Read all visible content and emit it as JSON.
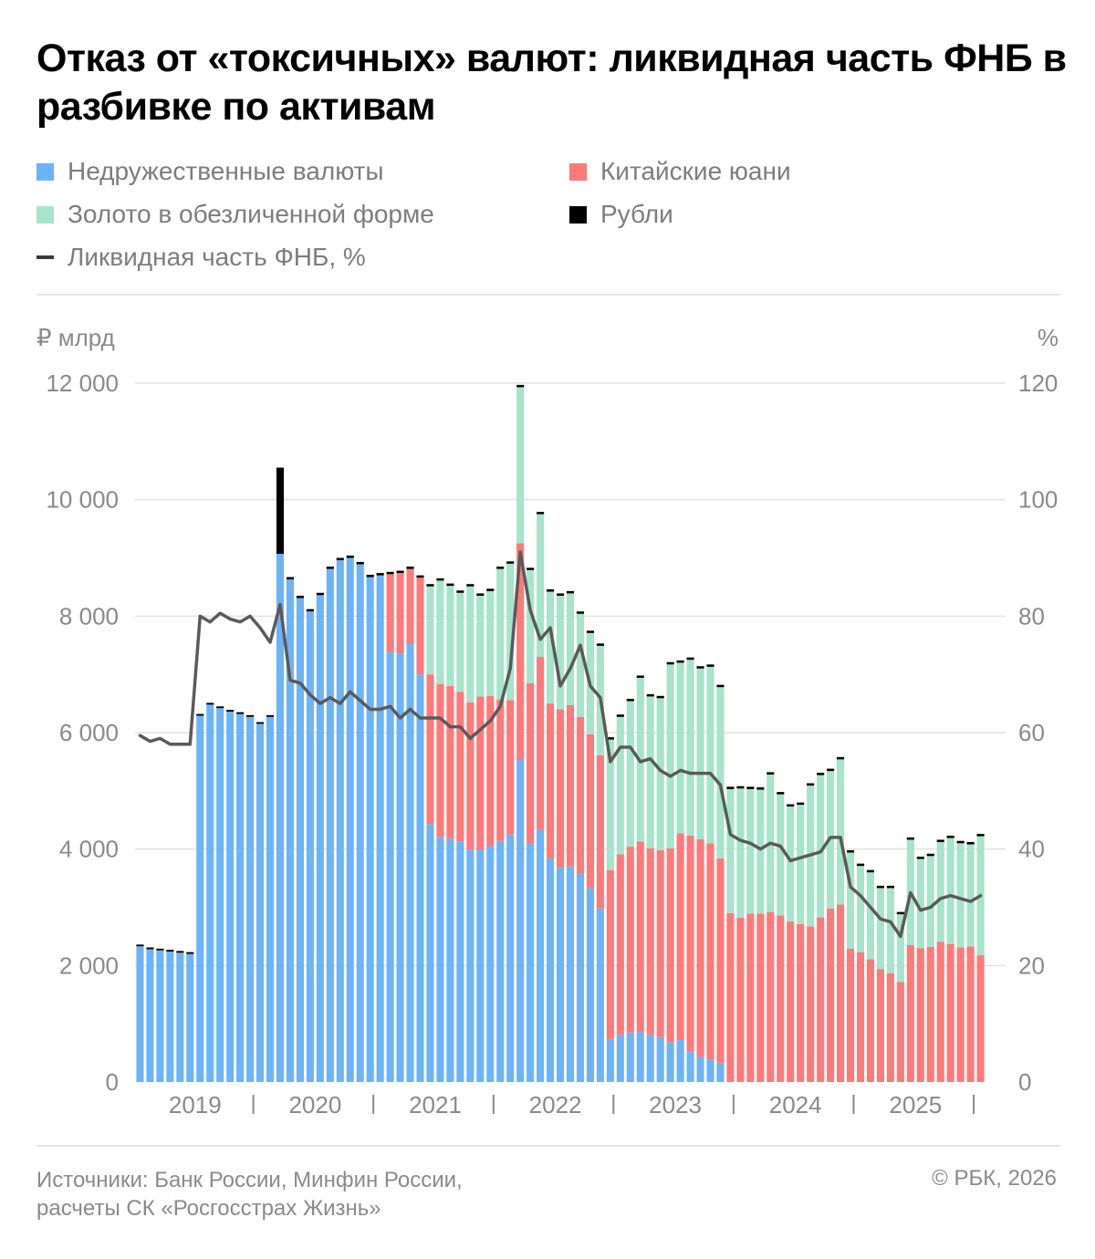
{
  "title": "Отказ от «токсичных» валют: ликвидная часть ФНБ в разбивке по активам",
  "legend": [
    {
      "label": "Недружественные валюты",
      "color": "#6cb4f8",
      "shape": "square"
    },
    {
      "label": "Китайские юани",
      "color": "#fd7a7a",
      "shape": "square"
    },
    {
      "label": "Золото в обезличенной форме",
      "color": "#a6e4cb",
      "shape": "square"
    },
    {
      "label": "Рубли",
      "color": "#000000",
      "shape": "square"
    },
    {
      "label": "Ликвидная часть ФНБ, %",
      "color": "#5a5a5a",
      "shape": "line"
    }
  ],
  "footer": {
    "source_line1": "Источники: Банк России, Минфин России,",
    "source_line2": "расчеты СК «Росгосстрах Жизнь»",
    "copyright": "© РБК, 2026"
  },
  "chart_data": {
    "type": "bar",
    "stacked": true,
    "y_left_label": "₽ млрд",
    "y_right_label": "%",
    "ylim_left": [
      0,
      12000
    ],
    "ylim_right": [
      0,
      120
    ],
    "y_left_ticks": [
      "0",
      "2 000",
      "4 000",
      "6 000",
      "8 000",
      "10 000",
      "12 000"
    ],
    "y_right_ticks": [
      "0",
      "20",
      "40",
      "60",
      "80",
      "100",
      "120"
    ],
    "grid": true,
    "legend_position": "top",
    "x_year_labels": [
      "2019",
      "2020",
      "2021",
      "2022",
      "2023",
      "2024",
      "2025"
    ],
    "colors": {
      "unfriendly": "#6cb4f8",
      "yuan": "#fd7a7a",
      "gold": "#a6e4cb",
      "rubles": "#000000",
      "line": "#5a5a5a"
    },
    "months_per_year": 12,
    "series": [
      {
        "name": "Недружественные валюты",
        "key": "unfriendly",
        "values": [
          2330,
          2280,
          2260,
          2240,
          2220,
          2200,
          6290,
          6480,
          6420,
          6360,
          6320,
          6270,
          6150,
          6270,
          9070,
          8630,
          8310,
          8080,
          8360,
          8810,
          8960,
          9000,
          8890,
          8670,
          8700,
          7380,
          7350,
          7520,
          7000,
          4430,
          4210,
          4180,
          4130,
          3990,
          3980,
          4050,
          4140,
          4250,
          5530,
          4090,
          4330,
          3840,
          3680,
          3700,
          3580,
          3330,
          2980,
          740,
          810,
          850,
          860,
          810,
          770,
          680,
          720,
          530,
          430,
          390,
          330,
          0,
          0,
          0,
          0,
          0,
          0,
          0,
          0,
          0,
          0,
          0,
          0,
          0,
          0,
          0,
          0,
          0,
          0,
          0,
          0,
          0,
          0,
          0,
          0,
          0,
          0,
          0,
          0
        ]
      },
      {
        "name": "Китайские юани",
        "key": "yuan",
        "values": [
          0,
          0,
          0,
          0,
          0,
          0,
          0,
          0,
          0,
          0,
          0,
          0,
          0,
          0,
          0,
          0,
          0,
          0,
          0,
          0,
          0,
          0,
          0,
          0,
          0,
          1340,
          1390,
          1290,
          1660,
          2570,
          2620,
          2620,
          2570,
          2530,
          2640,
          2580,
          2430,
          2310,
          3720,
          2760,
          2970,
          2660,
          2720,
          2770,
          2690,
          2640,
          2630,
          2900,
          3100,
          3190,
          3270,
          3200,
          3210,
          3330,
          3550,
          3700,
          3740,
          3710,
          3510,
          2900,
          2820,
          2890,
          2890,
          2920,
          2860,
          2760,
          2710,
          2670,
          2830,
          2980,
          3050,
          2290,
          2230,
          2110,
          1940,
          1870,
          1720,
          2350,
          2300,
          2320,
          2410,
          2370,
          2310,
          2330,
          2180
        ]
      },
      {
        "name": "Золото в обезличенной форме",
        "key": "gold",
        "values": [
          0,
          0,
          0,
          0,
          0,
          0,
          0,
          0,
          0,
          0,
          0,
          0,
          0,
          0,
          0,
          0,
          0,
          0,
          0,
          0,
          0,
          0,
          0,
          0,
          0,
          0,
          0,
          0,
          0,
          1510,
          1780,
          1720,
          1700,
          1990,
          1730,
          1800,
          2240,
          2340,
          2680,
          1940,
          2450,
          1920,
          1950,
          1920,
          1770,
          1740,
          1880,
          2240,
          2360,
          2500,
          2810,
          2610,
          2610,
          3160,
          2930,
          3020,
          2930,
          3030,
          2940,
          2130,
          2220,
          2140,
          2130,
          2360,
          2080,
          1970,
          2050,
          2420,
          2440,
          2360,
          2490,
          1650,
          1480,
          1490,
          1390,
          1460,
          1160,
          1810,
          1530,
          1560,
          1710,
          1820,
          1790,
          1750,
          2040
        ]
      },
      {
        "name": "Рубли",
        "key": "rubles",
        "values": [
          30,
          30,
          30,
          30,
          30,
          30,
          30,
          30,
          30,
          30,
          30,
          30,
          30,
          30,
          1480,
          40,
          40,
          40,
          40,
          40,
          40,
          40,
          40,
          40,
          40,
          40,
          40,
          40,
          40,
          40,
          40,
          40,
          40,
          40,
          40,
          40,
          40,
          40,
          40,
          40,
          40,
          40,
          40,
          40,
          40,
          40,
          40,
          40,
          40,
          40,
          40,
          40,
          40,
          40,
          40,
          40,
          40,
          40,
          40,
          40,
          40,
          40,
          40,
          40,
          40,
          40,
          40,
          40,
          40,
          40,
          40,
          40,
          40,
          40,
          40,
          40,
          40,
          40,
          40,
          40,
          40,
          40,
          40,
          40,
          40,
          40,
          40
        ]
      }
    ],
    "line": {
      "name": "Ликвидная часть ФНБ, %",
      "values": [
        59.5,
        58.5,
        59,
        58,
        58,
        58,
        80,
        79,
        80.5,
        79.5,
        79,
        80,
        78,
        75.5,
        82,
        69,
        68.5,
        66.5,
        65,
        66,
        65,
        67,
        65.5,
        64,
        64,
        64.5,
        62.5,
        64,
        62.5,
        62.5,
        62.5,
        61,
        61,
        59,
        60.5,
        62,
        64.5,
        71,
        91,
        81,
        76,
        78,
        68,
        71,
        75,
        68,
        66,
        55,
        57.5,
        57.5,
        55,
        55.5,
        53.5,
        52.5,
        53.5,
        53,
        53,
        53,
        51,
        42.5,
        41.5,
        41,
        40,
        41,
        40.5,
        38,
        38.5,
        39,
        39.5,
        42,
        42,
        33.5,
        32,
        30,
        28,
        27.5,
        25,
        32.5,
        29.5,
        30,
        31.5,
        32,
        31.5,
        31,
        32
      ]
    }
  }
}
